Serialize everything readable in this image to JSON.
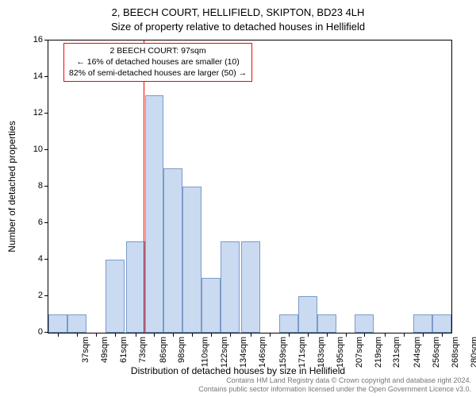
{
  "title_line1": "2, BEECH COURT, HELLIFIELD, SKIPTON, BD23 4LH",
  "title_line2": "Size of property relative to detached houses in Hellifield",
  "y_axis_label": "Number of detached properties",
  "x_axis_label": "Distribution of detached houses by size in Hellifield",
  "footer_line1": "Contains HM Land Registry data © Crown copyright and database right 2024.",
  "footer_line2": "Contains public sector information licensed under the Open Government Licence v3.0.",
  "info_box": {
    "line1": "2 BEECH COURT: 97sqm",
    "line2": "← 16% of detached houses are smaller (10)",
    "line3": "82% of semi-detached houses are larger (50) →"
  },
  "chart": {
    "type": "histogram",
    "background_color": "#ffffff",
    "border_color": "#000000",
    "bar_fill": "#c9daf1",
    "bar_border": "#7b9bc9",
    "marker_color": "#ff0000",
    "info_border": "#ff0000",
    "font_size_title": 13,
    "font_size_axis_label": 12,
    "font_size_tick": 11,
    "font_size_info": 10.5,
    "font_size_footer": 9,
    "x_categories": [
      "37sqm",
      "49sqm",
      "61sqm",
      "73sqm",
      "86sqm",
      "98sqm",
      "110sqm",
      "122sqm",
      "134sqm",
      "146sqm",
      "159sqm",
      "171sqm",
      "183sqm",
      "195sqm",
      "207sqm",
      "219sqm",
      "231sqm",
      "244sqm",
      "256sqm",
      "268sqm",
      "280sqm"
    ],
    "x_label_every": 1,
    "y_ticks": [
      0,
      2,
      4,
      6,
      8,
      10,
      12,
      14,
      16
    ],
    "ylim": [
      0,
      16
    ],
    "marker_x_value": 97,
    "x_range": [
      37,
      292
    ],
    "bars": [
      {
        "x": 37,
        "h": 1
      },
      {
        "x": 49,
        "h": 1
      },
      {
        "x": 73,
        "h": 4
      },
      {
        "x": 86,
        "h": 5
      },
      {
        "x": 98,
        "h": 13
      },
      {
        "x": 110,
        "h": 9
      },
      {
        "x": 122,
        "h": 8
      },
      {
        "x": 134,
        "h": 3
      },
      {
        "x": 146,
        "h": 5
      },
      {
        "x": 159,
        "h": 5
      },
      {
        "x": 183,
        "h": 1
      },
      {
        "x": 195,
        "h": 2
      },
      {
        "x": 207,
        "h": 1
      },
      {
        "x": 231,
        "h": 1
      },
      {
        "x": 268,
        "h": 1
      },
      {
        "x": 280,
        "h": 1
      }
    ],
    "bar_width_units": 12
  }
}
